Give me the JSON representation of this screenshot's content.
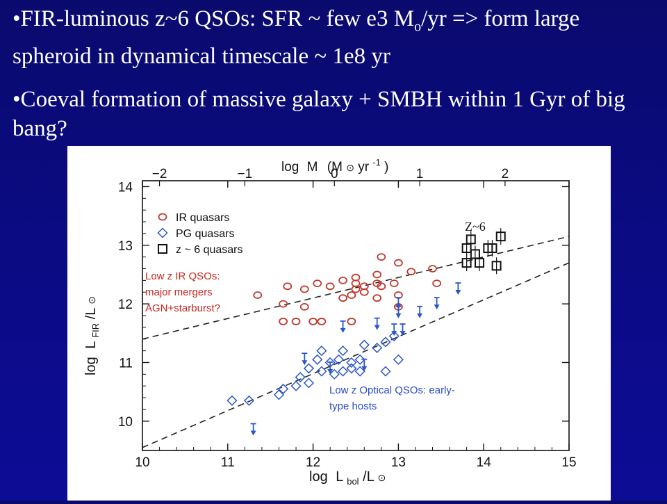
{
  "slide": {
    "bullet1_pre": "•FIR-luminous z~6 QSOs:  SFR ~ few e3 M",
    "bullet1_sub": "o",
    "bullet1_post": "/yr => form large spheroid in dynamical timescale ~ 1e8 yr",
    "bullet2": "•Coeval formation of massive galaxy + SMBH within 1 Gyr of big bang?"
  },
  "annotations": {
    "z6": "Z~6",
    "ir_line1": "Low z IR QSOs:",
    "ir_line2": "major mergers",
    "ir_line3": "AGN+starburst?",
    "opt_line1": "Low z Optical QSOs: early-",
    "opt_line2": "type hosts"
  },
  "colors": {
    "ir": "#c0392b",
    "pg": "#2a56c6",
    "z6": "#111111",
    "ir_note": "#c8281e",
    "opt_note": "#2a4cc8"
  },
  "chart_data": {
    "type": "scatter",
    "xlabel_main": "log",
    "xlabel_sym": "L",
    "xlabel_sub": "bol",
    "xlabel_den": "/L",
    "ylabel_main": "log",
    "ylabel_sym": "L",
    "ylabel_sub": "FIR",
    "ylabel_den": "/L",
    "top_label_main": "log",
    "top_label_sym": "M",
    "top_label_unit": "(M",
    "top_label_unit2": "yr",
    "top_label_exp": "-1",
    "top_label_close": ")",
    "xlim": [
      10,
      15
    ],
    "ylim": [
      9.5,
      14.1
    ],
    "xticks": [
      "10",
      "11",
      "12",
      "13",
      "14",
      "15"
    ],
    "yticks": [
      "10",
      "11",
      "12",
      "13",
      "14"
    ],
    "top_ticks": [
      "−2",
      "−1",
      "0",
      "1",
      "2"
    ],
    "top_tick_positions": [
      10.2,
      11.2,
      12.25,
      13.25,
      14.25
    ],
    "legend": [
      "IR quasars",
      "PG quasars",
      "z ~ 6 quasars"
    ],
    "legend_position": "top-left",
    "series": [
      {
        "name": "IR quasars",
        "marker": "circle",
        "points": [
          [
            11.35,
            12.15
          ],
          [
            11.65,
            12.0
          ],
          [
            11.7,
            12.3
          ],
          [
            11.65,
            11.7
          ],
          [
            11.8,
            11.7
          ],
          [
            11.9,
            11.95
          ],
          [
            11.9,
            12.25
          ],
          [
            12.0,
            11.7
          ],
          [
            12.05,
            12.35
          ],
          [
            12.1,
            11.7
          ],
          [
            12.2,
            12.3
          ],
          [
            12.35,
            12.1
          ],
          [
            12.35,
            12.4
          ],
          [
            12.45,
            12.15
          ],
          [
            12.5,
            12.35
          ],
          [
            12.6,
            12.3
          ],
          [
            12.6,
            12.2
          ],
          [
            12.5,
            12.45
          ],
          [
            12.75,
            12.1
          ],
          [
            12.75,
            12.5
          ],
          [
            12.8,
            12.3
          ],
          [
            12.8,
            12.8
          ],
          [
            12.95,
            12.35
          ],
          [
            13.0,
            12.7
          ],
          [
            13.0,
            12.15
          ],
          [
            13.0,
            11.95
          ],
          [
            13.15,
            12.55
          ],
          [
            13.4,
            12.6
          ],
          [
            13.45,
            12.35
          ],
          [
            12.45,
            11.7
          ],
          [
            12.75,
            12.35
          ],
          [
            12.5,
            12.25
          ]
        ]
      },
      {
        "name": "PG quasars",
        "marker": "diamond",
        "points": [
          [
            11.05,
            10.35
          ],
          [
            11.25,
            10.35
          ],
          [
            11.6,
            10.45
          ],
          [
            11.65,
            10.55
          ],
          [
            11.8,
            10.6
          ],
          [
            11.85,
            10.75
          ],
          [
            11.95,
            10.9
          ],
          [
            12.05,
            11.05
          ],
          [
            12.1,
            10.85
          ],
          [
            12.1,
            11.2
          ],
          [
            12.2,
            11.0
          ],
          [
            12.25,
            10.8
          ],
          [
            12.3,
            11.05
          ],
          [
            12.35,
            10.85
          ],
          [
            12.35,
            11.2
          ],
          [
            12.45,
            11.0
          ],
          [
            12.45,
            10.9
          ],
          [
            12.55,
            10.85
          ],
          [
            12.6,
            11.3
          ],
          [
            12.75,
            11.25
          ],
          [
            12.85,
            11.35
          ],
          [
            12.95,
            11.45
          ],
          [
            13.0,
            11.05
          ],
          [
            12.55,
            11.05
          ],
          [
            11.95,
            10.65
          ],
          [
            12.85,
            10.85
          ]
        ]
      },
      {
        "name": "PG quasar upper limits",
        "marker": "arrow",
        "points": [
          [
            11.3,
            9.85
          ],
          [
            11.9,
            11.05
          ],
          [
            12.2,
            10.9
          ],
          [
            12.35,
            11.6
          ],
          [
            12.6,
            10.95
          ],
          [
            12.75,
            11.65
          ],
          [
            12.95,
            11.55
          ],
          [
            13.0,
            12.0
          ],
          [
            13.05,
            11.55
          ],
          [
            13.0,
            11.85
          ],
          [
            13.25,
            11.85
          ],
          [
            13.45,
            12.0
          ],
          [
            13.7,
            12.25
          ]
        ]
      },
      {
        "name": "z ~ 6 quasars",
        "marker": "square",
        "points": [
          [
            13.8,
            12.95
          ],
          [
            13.85,
            13.1
          ],
          [
            13.9,
            12.85
          ],
          [
            13.95,
            12.7
          ],
          [
            14.05,
            12.95
          ],
          [
            13.8,
            12.7
          ],
          [
            14.1,
            12.95
          ],
          [
            14.15,
            12.65
          ],
          [
            14.2,
            13.15
          ]
        ]
      }
    ],
    "lines": [
      {
        "style": "dashed",
        "x": [
          10,
          15
        ],
        "y": [
          11.4,
          13.15
        ]
      },
      {
        "style": "dashed",
        "x": [
          10,
          15
        ],
        "y": [
          9.55,
          12.7
        ]
      }
    ]
  }
}
